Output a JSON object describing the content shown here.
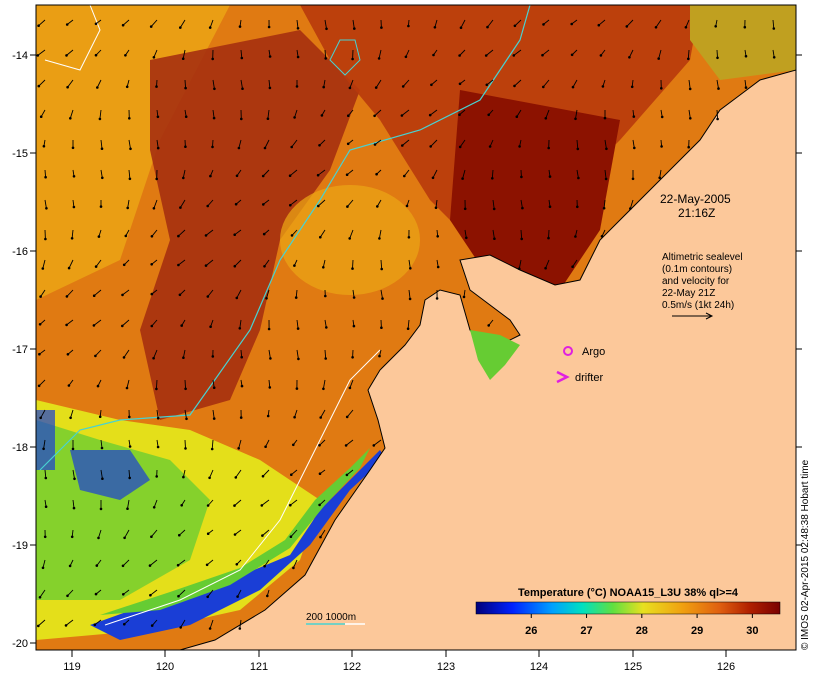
{
  "map": {
    "lon_range": [
      118.65,
      126.65
    ],
    "lat_range": [
      -20.1,
      -13.6
    ],
    "lon_ticks": [
      "119",
      "120",
      "121",
      "122",
      "123",
      "124",
      "125",
      "126"
    ],
    "lat_ticks": [
      "-14",
      "-15",
      "-16",
      "-17",
      "-18",
      "-19",
      "-20"
    ]
  },
  "annotations": {
    "date": "22-May-2005",
    "time": "21:16Z",
    "altimetric_lines": [
      "Altimetric sealevel",
      "(0.1m contours)",
      "and velocity for",
      "22-May 21Z",
      "0.5m/s (1kt 24h)"
    ],
    "argo_label": "Argo",
    "drifter_label": "drifter",
    "depth_contours_label": "200  1000m"
  },
  "colorbar": {
    "title": "Temperature (°C) NOAA15_L3U 38% ql>=4",
    "range": [
      25,
      30.5
    ],
    "ticks": [
      "26",
      "27",
      "28",
      "29",
      "30"
    ]
  },
  "credit": "© IMOS 02-Apr-2015 02:48:38 Hobart time",
  "colors": {
    "land": "#fcc89a",
    "warm_dark": "#8c1200",
    "warm_mid": "#c2410a",
    "warm_orange": "#e07a12",
    "warm_amber": "#eba415",
    "cool_yellow": "#e4df1a",
    "cool_green": "#66cc33",
    "cool_blue": "#1a3ed6",
    "contour_200": "#48d2d2",
    "contour_1000": "#ffffff",
    "argo": "#e020e0"
  }
}
